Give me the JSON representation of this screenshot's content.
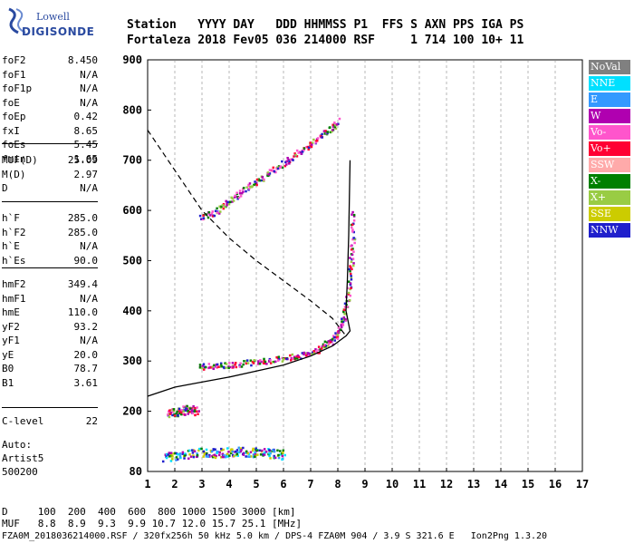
{
  "logo": {
    "line1": "Lowell",
    "line2": "DIGISONDE"
  },
  "header": {
    "line1": "Station   YYYY DAY   DDD HHMMSS P1  FFS S AXN PPS IGA PS",
    "line2": "Fortaleza 2018 Fev05 036 214000 RSF     1 714 100 10+ 11"
  },
  "params_group1": [
    {
      "name": "foF2",
      "value": "8.450"
    },
    {
      "name": "foF1",
      "value": "N/A"
    },
    {
      "name": "foF1p",
      "value": "N/A"
    },
    {
      "name": "foE",
      "value": "N/A"
    },
    {
      "name": "foEp",
      "value": "0.42"
    },
    {
      "name": "fxI",
      "value": "8.65"
    },
    {
      "name": "foEs",
      "value": "5.45"
    },
    {
      "name": "fmin",
      "value": "1.65"
    }
  ],
  "params_group2": [
    {
      "name": "MUF(D)",
      "value": "25.09"
    },
    {
      "name": "M(D)",
      "value": "2.97"
    },
    {
      "name": "D",
      "value": "N/A"
    }
  ],
  "params_group3": [
    {
      "name": "h`F",
      "value": "285.0"
    },
    {
      "name": "h`F2",
      "value": "285.0"
    },
    {
      "name": "h`E",
      "value": "N/A"
    },
    {
      "name": "h`Es",
      "value": "90.0"
    }
  ],
  "params_group4": [
    {
      "name": "hmF2",
      "value": "349.4"
    },
    {
      "name": "hmF1",
      "value": "N/A"
    },
    {
      "name": "hmE",
      "value": "110.0"
    },
    {
      "name": "yF2",
      "value": "93.2"
    },
    {
      "name": "yF1",
      "value": "N/A"
    },
    {
      "name": "yE",
      "value": "20.0"
    },
    {
      "name": "B0",
      "value": "78.7"
    },
    {
      "name": "B1",
      "value": "3.61"
    }
  ],
  "params_group5": [
    {
      "name": "C-level",
      "value": "22"
    }
  ],
  "autoscaling": {
    "label": "Auto:",
    "name": "Artist5",
    "version": "500200"
  },
  "legend": [
    {
      "label": "NoVal",
      "color": "#808080"
    },
    {
      "label": "NNE",
      "color": "#00e0ff"
    },
    {
      "label": "E",
      "color": "#3399ff"
    },
    {
      "label": "W",
      "color": "#b000b0"
    },
    {
      "label": "Vo-",
      "color": "#ff55cc"
    },
    {
      "label": "Vo+",
      "color": "#ff0033"
    },
    {
      "label": "SSW",
      "color": "#ffaaaa"
    },
    {
      "label": "X-",
      "color": "#008000"
    },
    {
      "label": "X+",
      "color": "#99cc44"
    },
    {
      "label": "SSE",
      "color": "#cccc00"
    },
    {
      "label": "NNW",
      "color": "#2020cc"
    }
  ],
  "footer": {
    "d_row": "D     100  200  400  600  800 1000 1500 3000 [km]",
    "muf_row": "MUF   8.8  8.9  9.3  9.9 10.7 12.0 15.7 25.1 [MHz]",
    "info_row": "FZA0M_2018036214000.RSF / 320fx256h 50 kHz 5.0 km / DPS-4 FZA0M 904 / 3.9 S 321.6 E   Ion2Png 1.3.20"
  },
  "chart_data": {
    "type": "scatter",
    "x_ticks": [
      1,
      2,
      3,
      4,
      5,
      6,
      7,
      8,
      9,
      10,
      11,
      12,
      13,
      14,
      15,
      16,
      17
    ],
    "y_ticks": [
      80,
      200,
      300,
      400,
      500,
      600,
      700,
      800,
      900
    ],
    "xlim": [
      1,
      17
    ],
    "ylim": [
      80,
      900
    ],
    "grid": "vertical dashed",
    "series": [
      {
        "values": [
          [
            2.9,
            290
          ],
          [
            3.5,
            292
          ],
          [
            4.2,
            295
          ],
          [
            5,
            300
          ],
          [
            5.8,
            305
          ],
          [
            6.6,
            312
          ],
          [
            7.2,
            322
          ],
          [
            7.7,
            340
          ],
          [
            8.0,
            360
          ],
          [
            8.2,
            390
          ],
          [
            8.4,
            450
          ],
          [
            8.5,
            520
          ],
          [
            8.55,
            600
          ]
        ]
      },
      {
        "values": [
          [
            2.9,
            585
          ],
          [
            3.5,
            600
          ],
          [
            4,
            620
          ],
          [
            4.6,
            645
          ],
          [
            5.2,
            665
          ],
          [
            5.8,
            690
          ],
          [
            6.4,
            710
          ],
          [
            7,
            735
          ],
          [
            7.6,
            760
          ],
          [
            8.0,
            780
          ]
        ]
      },
      {
        "values": [
          [
            1.6,
            110
          ],
          [
            2.2,
            115
          ],
          [
            3,
            120
          ],
          [
            3.6,
            118
          ],
          [
            4.2,
            122
          ],
          [
            4.8,
            120
          ],
          [
            5.4,
            118
          ],
          [
            6,
            115
          ]
        ]
      },
      {
        "values": [
          [
            1.7,
            195
          ],
          [
            2.1,
            200
          ],
          [
            2.5,
            205
          ],
          [
            2.8,
            200
          ]
        ]
      }
    ],
    "profile_solid": [
      [
        1,
        230
      ],
      [
        2,
        248
      ],
      [
        3,
        258
      ],
      [
        4,
        268
      ],
      [
        5,
        280
      ],
      [
        6,
        292
      ],
      [
        7,
        310
      ],
      [
        7.8,
        330
      ],
      [
        8.3,
        350
      ],
      [
        8.45,
        360
      ],
      [
        8.3,
        400
      ],
      [
        8.35,
        460
      ],
      [
        8.4,
        550
      ],
      [
        8.45,
        700
      ]
    ],
    "profile_dashed": [
      [
        1,
        760
      ],
      [
        2,
        680
      ],
      [
        3,
        600
      ],
      [
        4,
        545
      ],
      [
        5,
        500
      ],
      [
        6,
        460
      ],
      [
        7,
        420
      ],
      [
        7.8,
        385
      ],
      [
        8.3,
        350
      ]
    ]
  }
}
